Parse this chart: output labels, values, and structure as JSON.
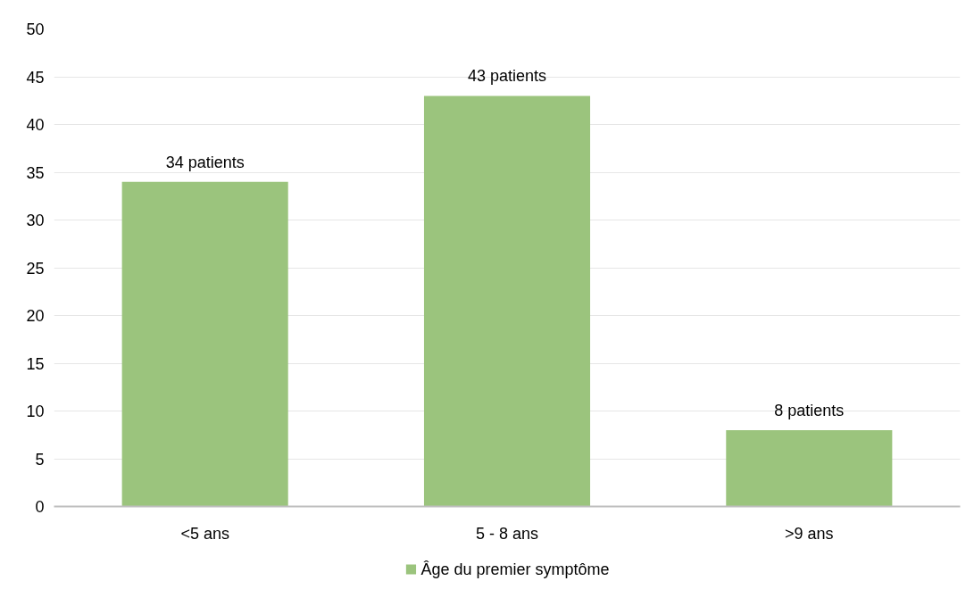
{
  "chart_data": {
    "type": "bar",
    "categories": [
      "<5 ans",
      "5 - 8 ans",
      ">9 ans"
    ],
    "series": [
      {
        "name": "Âge du premier symptôme",
        "color": "#9bc47d",
        "values": [
          34,
          43,
          8
        ],
        "value_labels": [
          "34 patients",
          "43 patients",
          "8 patients"
        ]
      }
    ],
    "ylim": [
      0,
      50
    ],
    "yticks": [
      0,
      5,
      10,
      15,
      20,
      25,
      30,
      35,
      40,
      45,
      50
    ],
    "grid": "y",
    "legend": "bottom"
  }
}
